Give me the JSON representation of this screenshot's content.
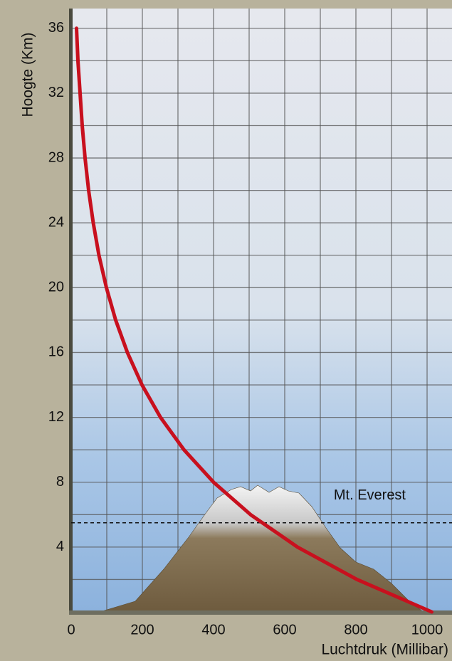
{
  "chart_data": {
    "type": "line",
    "x_label": "Luchtdruk (Millibar)",
    "y_label": "Hoogte (Km)",
    "x": [
      1013,
      803,
      636,
      504,
      400,
      317,
      251,
      199,
      158,
      125,
      99,
      78,
      62,
      49,
      39,
      31,
      25,
      19,
      15
    ],
    "values": [
      0,
      2,
      4,
      6,
      8,
      10,
      12,
      14,
      16,
      18,
      20,
      22,
      24,
      26,
      28,
      30,
      32,
      34,
      36
    ],
    "color": "#c8101e",
    "xlim": [
      0,
      1050
    ],
    "ylim": [
      0,
      37
    ],
    "xticks": [
      0,
      200,
      400,
      600,
      800,
      1000
    ],
    "xminor": [
      100,
      300,
      500,
      700,
      900
    ],
    "yticks": [
      4,
      8,
      12,
      16,
      20,
      24,
      28,
      32,
      36
    ],
    "yminor": [
      2,
      6,
      10,
      14,
      18,
      22,
      26,
      30,
      34
    ],
    "grid": true,
    "annotations": [
      {
        "label": "Mt. Everest",
        "y": 5.5
      }
    ]
  }
}
